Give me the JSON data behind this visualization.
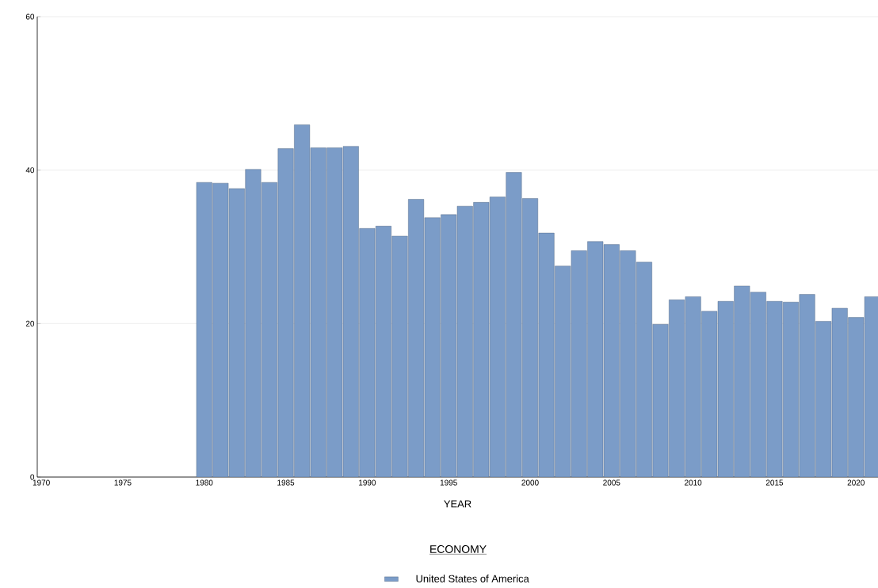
{
  "chart_data": {
    "type": "bar",
    "xlabel": "YEAR",
    "legend_title": "ECONOMY",
    "x": [
      1980,
      1981,
      1982,
      1983,
      1984,
      1985,
      1986,
      1987,
      1988,
      1989,
      1990,
      1991,
      1992,
      1993,
      1994,
      1995,
      1996,
      1997,
      1998,
      1999,
      2000,
      2001,
      2002,
      2003,
      2004,
      2005,
      2006,
      2007,
      2008,
      2009,
      2010,
      2011,
      2012,
      2013,
      2014,
      2015,
      2016,
      2017,
      2018,
      2019,
      2020,
      2021
    ],
    "series": [
      {
        "name": "United States of America",
        "color": "#7b9cc8",
        "values": [
          38.4,
          38.3,
          37.6,
          40.1,
          38.4,
          42.8,
          45.9,
          42.9,
          42.9,
          43.1,
          32.4,
          32.7,
          31.4,
          36.2,
          33.8,
          34.2,
          35.3,
          35.8,
          36.5,
          39.7,
          36.3,
          31.8,
          27.5,
          29.5,
          30.7,
          30.3,
          29.5,
          28.0,
          19.9,
          23.1,
          23.5,
          21.6,
          22.9,
          24.9,
          24.1,
          22.9,
          22.8,
          23.8,
          20.3,
          22.0,
          20.8,
          23.5
        ]
      }
    ],
    "xlim": [
      1969.75,
      2021.35
    ],
    "xticks": [
      1970,
      1975,
      1980,
      1985,
      1990,
      1995,
      2000,
      2005,
      2010,
      2015,
      2020
    ],
    "ylim": [
      0,
      60
    ],
    "yticks": [
      0,
      20,
      40,
      60
    ],
    "grid": "y",
    "legend": "bottom"
  }
}
